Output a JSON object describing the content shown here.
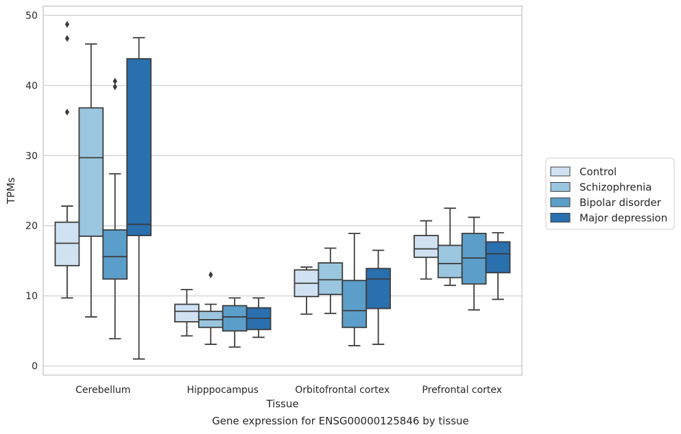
{
  "caption": "Gene expression for ENSG00000125846 by tissue",
  "chart_data": {
    "type": "box",
    "xlabel": "Tissue",
    "ylabel": "TPMs",
    "ylim": [
      -1.3,
      51.3
    ],
    "yticks": [
      0,
      10,
      20,
      30,
      40,
      50
    ],
    "grid": "horizontal",
    "legend_position": "outside-right",
    "categories": [
      "Cerebellum",
      "Hipppocampus",
      "Orbitofrontal cortex",
      "Prefrontal cortex"
    ],
    "series": [
      {
        "name": "Control",
        "color": "#d0e1f2",
        "boxes": [
          {
            "whislo": 9.7,
            "q1": 14.3,
            "med": 17.5,
            "q3": 20.5,
            "whishi": 22.8,
            "fliers": [
              36.2,
              46.7,
              48.7
            ]
          },
          {
            "whislo": 4.3,
            "q1": 6.3,
            "med": 7.8,
            "q3": 8.8,
            "whishi": 10.9,
            "fliers": []
          },
          {
            "whislo": 7.4,
            "q1": 9.9,
            "med": 11.8,
            "q3": 13.7,
            "whishi": 14.1,
            "fliers": []
          },
          {
            "whislo": 12.4,
            "q1": 15.5,
            "med": 16.7,
            "q3": 18.6,
            "whishi": 20.7,
            "fliers": []
          }
        ]
      },
      {
        "name": "Schizophrenia",
        "color": "#9ac6df",
        "boxes": [
          {
            "whislo": 7.0,
            "q1": 18.5,
            "med": 29.7,
            "q3": 36.8,
            "whishi": 45.9,
            "fliers": []
          },
          {
            "whislo": 3.1,
            "q1": 5.5,
            "med": 6.6,
            "q3": 7.8,
            "whishi": 8.8,
            "fliers": [
              13.0
            ]
          },
          {
            "whislo": 7.5,
            "q1": 10.2,
            "med": 12.3,
            "q3": 14.7,
            "whishi": 16.8,
            "fliers": []
          },
          {
            "whislo": 11.5,
            "q1": 12.6,
            "med": 14.6,
            "q3": 17.2,
            "whishi": 22.5,
            "fliers": []
          }
        ]
      },
      {
        "name": "Bipolar disorder",
        "color": "#5b9ec9",
        "boxes": [
          {
            "whislo": 3.9,
            "q1": 12.4,
            "med": 15.6,
            "q3": 19.4,
            "whishi": 27.4,
            "fliers": [
              39.8,
              40.6
            ]
          },
          {
            "whislo": 2.7,
            "q1": 5.0,
            "med": 7.0,
            "q3": 8.6,
            "whishi": 9.7,
            "fliers": []
          },
          {
            "whislo": 2.9,
            "q1": 5.5,
            "med": 7.9,
            "q3": 12.2,
            "whishi": 18.9,
            "fliers": []
          },
          {
            "whislo": 8.0,
            "q1": 11.7,
            "med": 15.4,
            "q3": 18.9,
            "whishi": 21.2,
            "fliers": []
          }
        ]
      },
      {
        "name": "Major depression",
        "color": "#2a6fae",
        "boxes": [
          {
            "whislo": 1.0,
            "q1": 18.6,
            "med": 20.2,
            "q3": 43.8,
            "whishi": 46.8,
            "fliers": []
          },
          {
            "whislo": 4.1,
            "q1": 5.2,
            "med": 6.8,
            "q3": 8.3,
            "whishi": 9.7,
            "fliers": []
          },
          {
            "whislo": 3.1,
            "q1": 8.2,
            "med": 12.4,
            "q3": 13.9,
            "whishi": 16.5,
            "fliers": []
          },
          {
            "whislo": 9.5,
            "q1": 13.3,
            "med": 16.0,
            "q3": 17.7,
            "whishi": 19.0,
            "fliers": []
          }
        ]
      }
    ]
  }
}
